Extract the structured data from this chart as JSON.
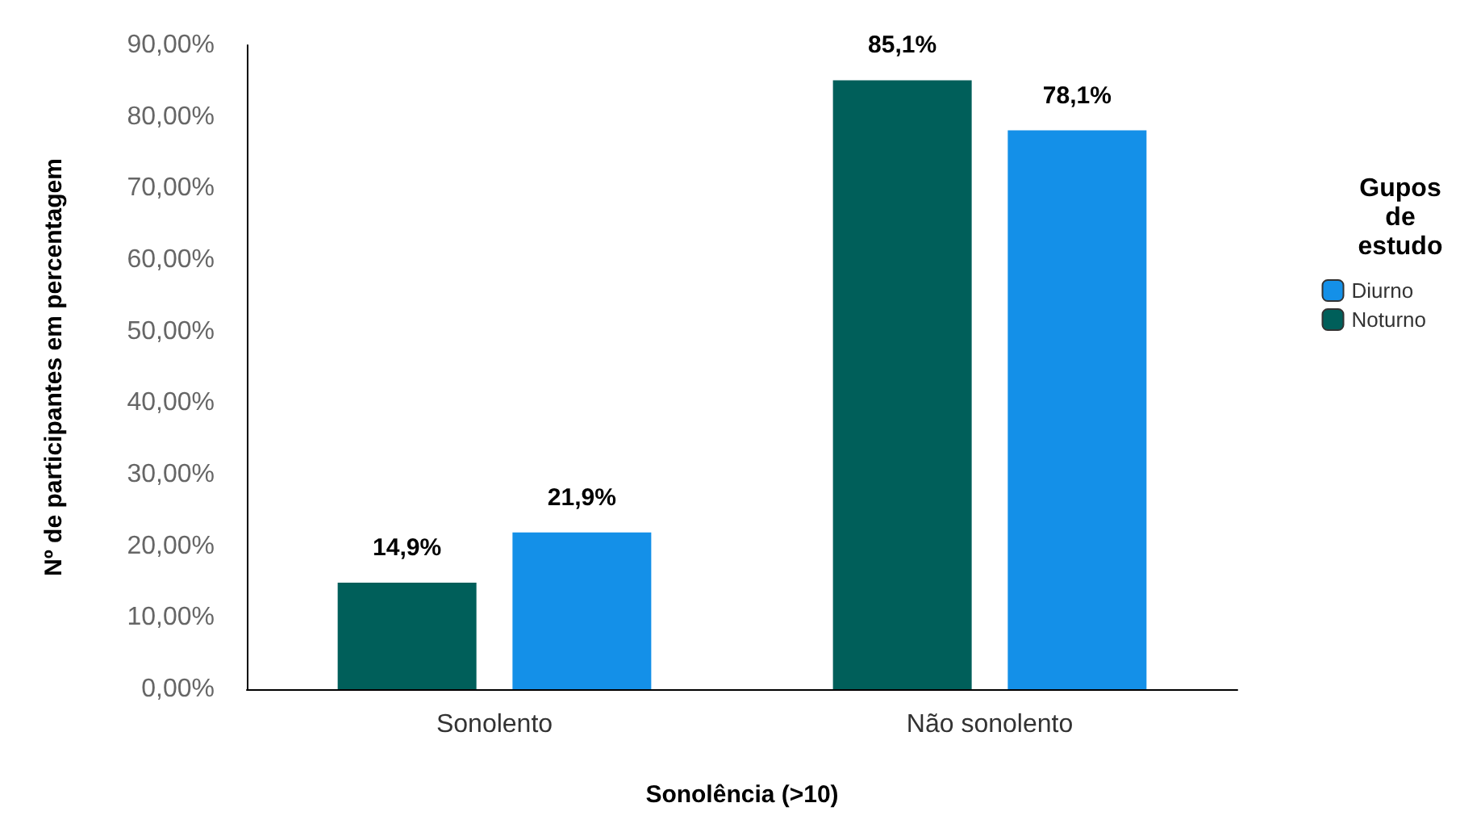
{
  "chart_data": {
    "type": "bar",
    "xlabel": "Sonolência (>10)",
    "ylabel": "Nº de participantes em percentagem",
    "legend_title": "Gupos de estudo",
    "legend": "right",
    "categories": [
      "Sonolento",
      "Não sonolento"
    ],
    "series": [
      {
        "name": "Noturno",
        "color": "#005f5a",
        "values": [
          14.9,
          85.1
        ],
        "value_labels": [
          "14,9%",
          "85,1%"
        ]
      },
      {
        "name": "Diurno",
        "color": "#1490e8",
        "values": [
          21.9,
          78.1
        ],
        "value_labels": [
          "21,9%",
          "78,1%"
        ]
      }
    ],
    "ylim": [
      0,
      90
    ],
    "yticks": [
      {
        "value": 0,
        "label": "0,00%"
      },
      {
        "value": 10,
        "label": "10,00%"
      },
      {
        "value": 20,
        "label": "20,00%"
      },
      {
        "value": 30,
        "label": "30,00%"
      },
      {
        "value": 40,
        "label": "40,00%"
      },
      {
        "value": 50,
        "label": "50,00%"
      },
      {
        "value": 60,
        "label": "60,00%"
      },
      {
        "value": 70,
        "label": "70,00%"
      },
      {
        "value": 80,
        "label": "80,00%"
      },
      {
        "value": 90,
        "label": "90,00%"
      }
    ],
    "grid": false
  }
}
